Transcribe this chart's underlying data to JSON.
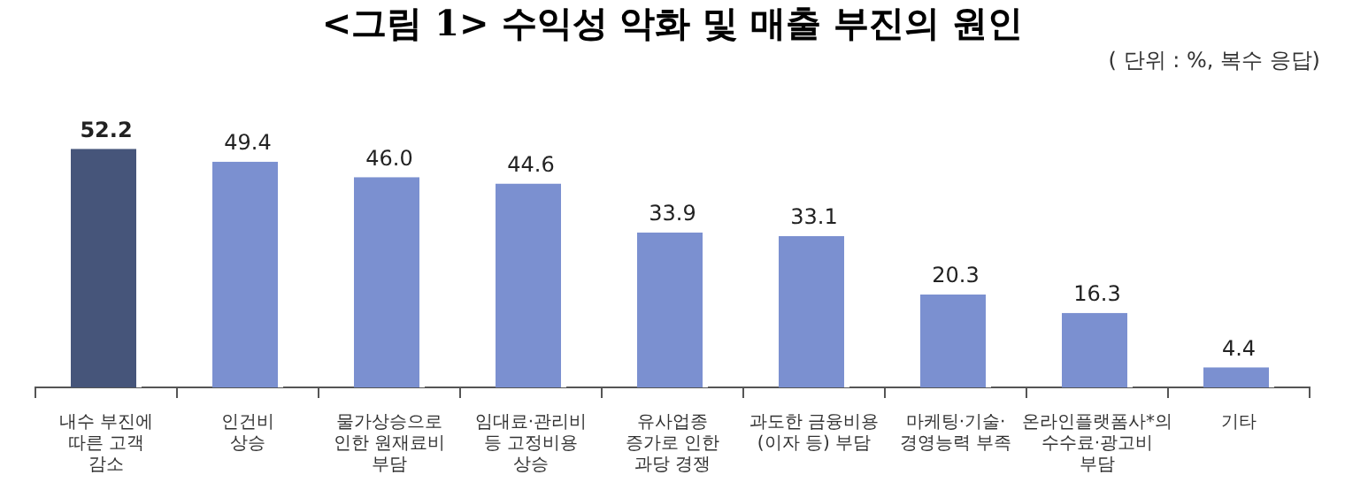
{
  "chart_data": {
    "type": "bar",
    "title": "<그림 1> 수익성 악화 및 매출 부진의 원인",
    "subtitle": "( 단위 : %, 복수 응답)",
    "categories": [
      "내수 부진에\n따른 고객\n감소",
      "인건비\n상승",
      "물가상승으로\n인한 원재료비\n부담",
      "임대료·관리비\n등 고정비용\n상승",
      "유사업종\n증가로 인한\n과당 경쟁",
      "과도한 금융비용\n(이자 등) 부담",
      "마케팅·기술·\n경영능력 부족",
      "온라인플랫폼사*의\n수수료·광고비\n부담",
      "기타"
    ],
    "values": [
      52.2,
      49.4,
      46.0,
      44.6,
      33.9,
      33.1,
      20.3,
      16.3,
      4.4
    ],
    "colors": [
      "#46557a",
      "#7b90d0",
      "#7b90d0",
      "#7b90d0",
      "#7b90d0",
      "#7b90d0",
      "#7b90d0",
      "#7b90d0",
      "#7b90d0"
    ],
    "value_labels": [
      "52.2",
      "49.4",
      "46.0",
      "44.6",
      "33.9",
      "33.1",
      "20.3",
      "16.3",
      "4.4"
    ],
    "tick_labels": "x",
    "legend": false,
    "grid": false
  }
}
